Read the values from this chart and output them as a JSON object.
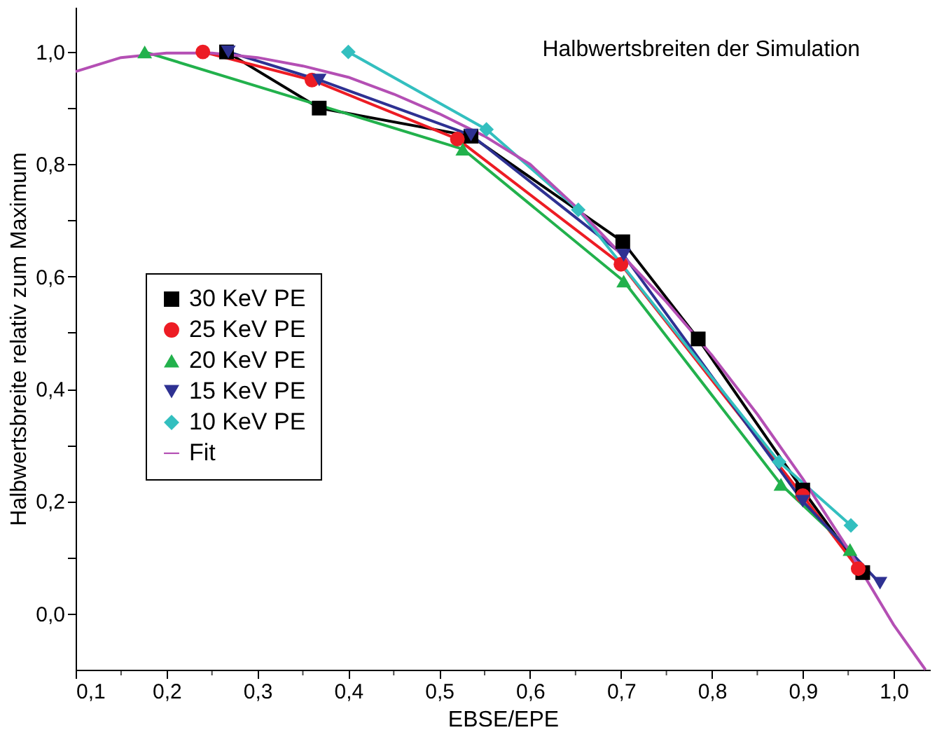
{
  "chart_data": {
    "type": "line",
    "xlabel": "EBSE/EPE",
    "ylabel": "Halbwertsbreite relativ zum Maximum",
    "annotations": [
      "Halbwertsbreiten der Simulation"
    ],
    "xlim": [
      0.1,
      1.04
    ],
    "ylim": [
      -0.1,
      1.08
    ],
    "xticks": [
      {
        "value": 0.1,
        "label": "0,1"
      },
      {
        "value": 0.15,
        "label": null
      },
      {
        "value": 0.2,
        "label": "0,2"
      },
      {
        "value": 0.25,
        "label": null
      },
      {
        "value": 0.3,
        "label": "0,3"
      },
      {
        "value": 0.35,
        "label": null
      },
      {
        "value": 0.4,
        "label": "0,4"
      },
      {
        "value": 0.45,
        "label": null
      },
      {
        "value": 0.5,
        "label": "0,5"
      },
      {
        "value": 0.55,
        "label": null
      },
      {
        "value": 0.6,
        "label": "0,6"
      },
      {
        "value": 0.65,
        "label": null
      },
      {
        "value": 0.7,
        "label": "0,7"
      },
      {
        "value": 0.75,
        "label": null
      },
      {
        "value": 0.8,
        "label": "0,8"
      },
      {
        "value": 0.85,
        "label": null
      },
      {
        "value": 0.9,
        "label": "0,9"
      },
      {
        "value": 0.95,
        "label": null
      },
      {
        "value": 1.0,
        "label": "1,0"
      }
    ],
    "yticks": [
      {
        "value": 0.0,
        "label": "0,0"
      },
      {
        "value": 0.1,
        "label": null
      },
      {
        "value": 0.2,
        "label": "0,2"
      },
      {
        "value": 0.3,
        "label": null
      },
      {
        "value": 0.4,
        "label": "0,4"
      },
      {
        "value": 0.5,
        "label": null
      },
      {
        "value": 0.6,
        "label": "0,6"
      },
      {
        "value": 0.7,
        "label": null
      },
      {
        "value": 0.8,
        "label": "0,8"
      },
      {
        "value": 0.9,
        "label": null
      },
      {
        "value": 1.0,
        "label": "1,0"
      }
    ],
    "grid": false,
    "legend": "left",
    "line_style": "solid",
    "series": [
      {
        "name": "30 KeV PE",
        "color": "#000000",
        "marker": "square",
        "x": [
          0.266,
          0.368,
          0.535,
          0.702,
          0.785,
          0.9,
          0.966
        ],
        "values": [
          1.0,
          0.9,
          0.85,
          0.662,
          0.489,
          0.22,
          0.073
        ]
      },
      {
        "name": "25 KeV PE",
        "color": "#ed1c24",
        "marker": "circle",
        "x": [
          0.24,
          0.36,
          0.52,
          0.7,
          0.9,
          0.961
        ],
        "values": [
          1.0,
          0.95,
          0.845,
          0.622,
          0.21,
          0.08
        ]
      },
      {
        "name": "20 KeV PE",
        "color": "#22b14c",
        "marker": "triangle",
        "x": [
          0.176,
          0.526,
          0.703,
          0.876,
          0.952
        ],
        "values": [
          1.0,
          0.827,
          0.592,
          0.23,
          0.114
        ]
      },
      {
        "name": "15 KeV PE",
        "color": "#2e3192",
        "marker": "triangle-down",
        "x": [
          0.268,
          0.368,
          0.535,
          0.703,
          0.9,
          0.985
        ],
        "values": [
          1.0,
          0.95,
          0.852,
          0.638,
          0.2,
          0.054
        ]
      },
      {
        "name": "10 KeV PE",
        "color": "#33bfbf",
        "marker": "diamond",
        "x": [
          0.4,
          0.552,
          0.653,
          0.874,
          0.953
        ],
        "values": [
          1.0,
          0.862,
          0.719,
          0.27,
          0.157
        ]
      },
      {
        "name": "Fit",
        "color": "#b44fb4",
        "marker": "none",
        "x": [
          0.1,
          0.15,
          0.2,
          0.25,
          0.3,
          0.35,
          0.4,
          0.45,
          0.5,
          0.55,
          0.6,
          0.65,
          0.7,
          0.75,
          0.8,
          0.85,
          0.9,
          0.95,
          1.0,
          1.035
        ],
        "values": [
          0.965,
          0.99,
          0.998,
          0.998,
          0.99,
          0.975,
          0.955,
          0.925,
          0.89,
          0.85,
          0.8,
          0.725,
          0.64,
          0.555,
          0.46,
          0.355,
          0.24,
          0.115,
          -0.02,
          -0.1
        ]
      }
    ]
  }
}
